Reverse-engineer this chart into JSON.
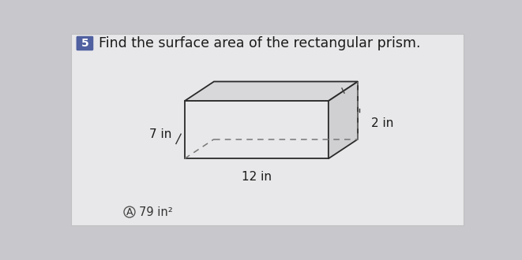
{
  "background_color": "#c8c8cc",
  "card_color": "#e8e8ea",
  "card_border": "#c0c0c2",
  "question_number": "5",
  "question_number_bg": "#5060a0",
  "question_text": "Find the surface area of the rectangular prism.",
  "question_fontsize": 12.5,
  "dim_7": "7 in",
  "dim_12": "12 in",
  "dim_2": "2 in",
  "answer_label": "A",
  "answer_text": "79 in²",
  "prism_line_color": "#2a2a2a",
  "dashed_line_color": "#777777",
  "front_fill": "#e8e8ea",
  "top_fill": "#d8d8da",
  "right_fill": "#d0d0d2",
  "tick_color": "#444444"
}
